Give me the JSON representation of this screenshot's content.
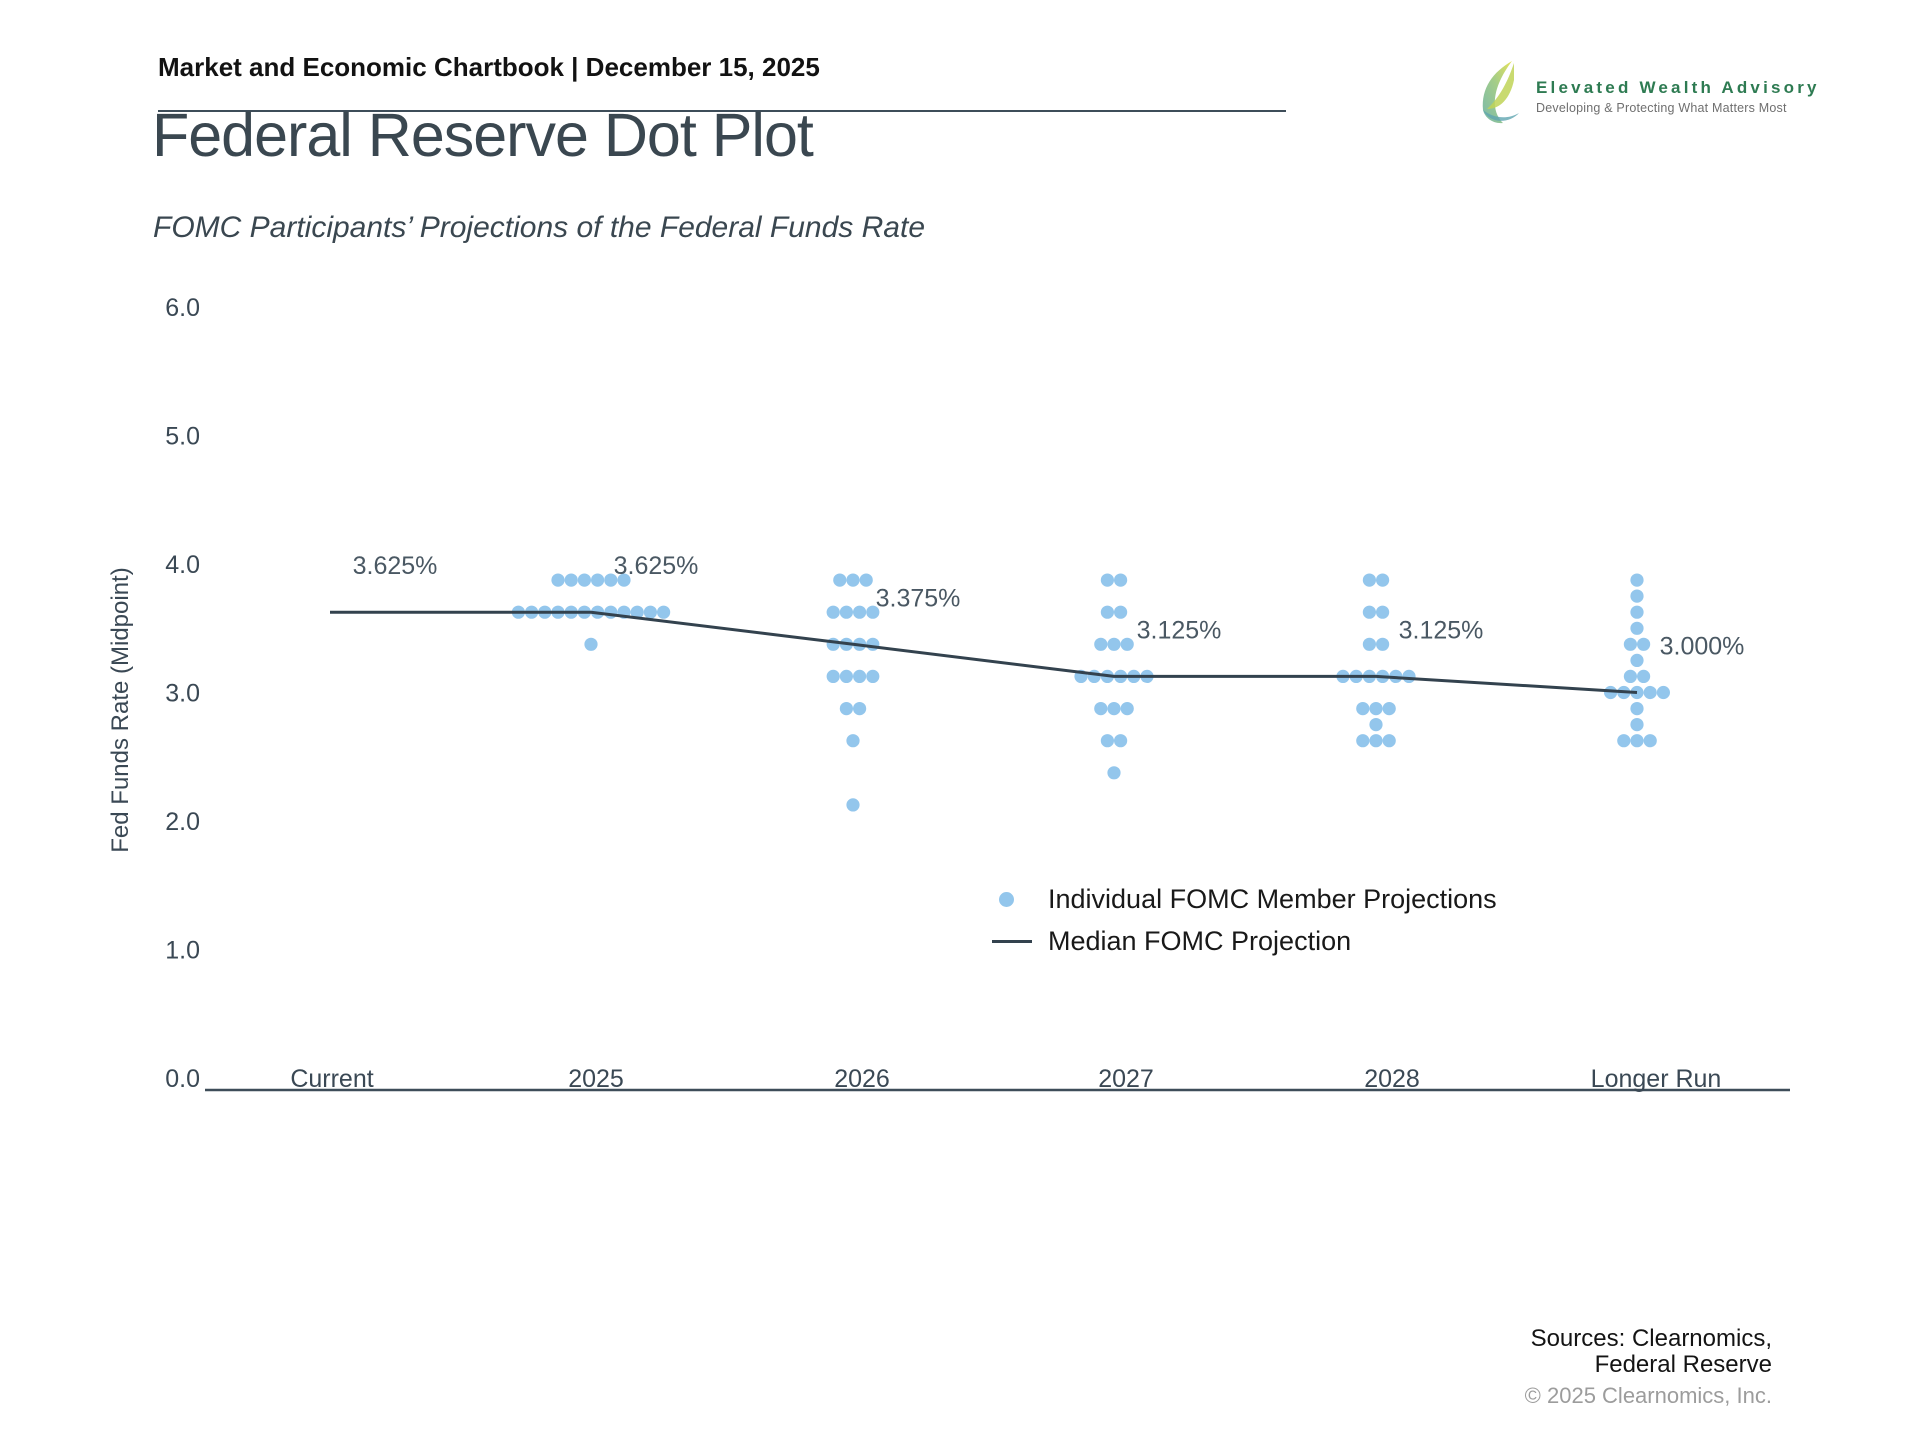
{
  "header": {
    "title": "Market and Economic Chartbook | December 15, 2025"
  },
  "logo": {
    "name": "Elevated Wealth Advisory",
    "tagline": "Developing & Protecting What Matters Most",
    "name_color": "#2e7b52",
    "tagline_color": "#6f6f6f"
  },
  "title": "Federal Reserve Dot Plot",
  "subtitle": "FOMC Participants’ Projections of the Federal Funds Rate",
  "chart_data": {
    "type": "scatter",
    "title": "Federal Reserve Dot Plot",
    "xlabel": "",
    "ylabel": "Fed Funds Rate (Midpoint)",
    "ylim": [
      0,
      6
    ],
    "ytick_labels": [
      "0.0",
      "1.0",
      "2.0",
      "3.0",
      "4.0",
      "5.0",
      "6.0"
    ],
    "grid": false,
    "categories": [
      "Current",
      "2025",
      "2026",
      "2027",
      "2028",
      "Longer Run"
    ],
    "dots_by_category": [
      {
        "category": "Current",
        "rows": []
      },
      {
        "category": "2025",
        "rows": [
          {
            "rate": 3.875,
            "count": 6
          },
          {
            "rate": 3.625,
            "count": 12
          },
          {
            "rate": 3.375,
            "count": 1
          }
        ]
      },
      {
        "category": "2026",
        "rows": [
          {
            "rate": 3.875,
            "count": 3
          },
          {
            "rate": 3.625,
            "count": 4
          },
          {
            "rate": 3.375,
            "count": 4
          },
          {
            "rate": 3.125,
            "count": 4
          },
          {
            "rate": 2.875,
            "count": 2
          },
          {
            "rate": 2.625,
            "count": 1
          },
          {
            "rate": 2.125,
            "count": 1
          }
        ]
      },
      {
        "category": "2027",
        "rows": [
          {
            "rate": 3.875,
            "count": 2
          },
          {
            "rate": 3.625,
            "count": 2
          },
          {
            "rate": 3.375,
            "count": 3
          },
          {
            "rate": 3.125,
            "count": 6
          },
          {
            "rate": 2.875,
            "count": 3
          },
          {
            "rate": 2.625,
            "count": 2
          },
          {
            "rate": 2.375,
            "count": 1
          }
        ]
      },
      {
        "category": "2028",
        "rows": [
          {
            "rate": 3.875,
            "count": 2
          },
          {
            "rate": 3.625,
            "count": 2
          },
          {
            "rate": 3.375,
            "count": 2
          },
          {
            "rate": 3.125,
            "count": 6
          },
          {
            "rate": 2.875,
            "count": 3
          },
          {
            "rate": 2.75,
            "count": 1
          },
          {
            "rate": 2.625,
            "count": 3
          }
        ]
      },
      {
        "category": "Longer Run",
        "rows": [
          {
            "rate": 3.875,
            "count": 1
          },
          {
            "rate": 3.75,
            "count": 1
          },
          {
            "rate": 3.625,
            "count": 1
          },
          {
            "rate": 3.5,
            "count": 1
          },
          {
            "rate": 3.375,
            "count": 2
          },
          {
            "rate": 3.25,
            "count": 1
          },
          {
            "rate": 3.125,
            "count": 2
          },
          {
            "rate": 3.0,
            "count": 5
          },
          {
            "rate": 2.875,
            "count": 1
          },
          {
            "rate": 2.75,
            "count": 1
          },
          {
            "rate": 2.625,
            "count": 3
          }
        ]
      }
    ],
    "median": {
      "values": [
        3.625,
        3.625,
        3.375,
        3.125,
        3.125,
        3.0
      ],
      "labels": [
        "3.625%",
        "3.625%",
        "3.375%",
        "3.125%",
        "3.125%",
        "3.000%"
      ]
    },
    "legend": {
      "position": "inside-lower-middle",
      "entries": [
        {
          "marker": "dot",
          "label": "Individual FOMC Member Projections"
        },
        {
          "marker": "line",
          "label": "Median FOMC Projection"
        }
      ]
    },
    "colors": {
      "dots": "#93c6ec",
      "median_line": "#33424e",
      "axis_text": "#3a4854",
      "annotation_text": "#4a5863",
      "axis_line": "#3e4d59"
    }
  },
  "sources": {
    "line1": "Sources: Clearnomics,",
    "line2": "Federal Reserve",
    "copyright": "© 2025 Clearnomics, Inc."
  }
}
